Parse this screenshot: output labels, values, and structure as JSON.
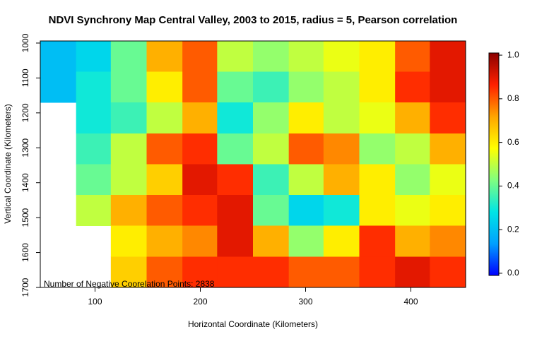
{
  "chart_data": {
    "type": "heatmap",
    "title": "NDVI Synchrony Map Central Valley, 2003 to 2015, radius = 5, Pearson correlation",
    "x_label": "Horizontal Coordinate (Kilometers)",
    "y_label": "Vertical Coordinate (Kilometers)",
    "annotation": "Number of Negative Coorelation Points: 2838",
    "xlim": [
      48,
      452
    ],
    "ylim": [
      994,
      1700
    ],
    "y_reversed": true,
    "xticks": [
      100,
      200,
      300,
      400
    ],
    "yticks": [
      1000,
      1100,
      1200,
      1300,
      1400,
      1500,
      1600,
      1700
    ],
    "x_edges": [
      48,
      82,
      115,
      149,
      183,
      216,
      250,
      284,
      317,
      351,
      385,
      418,
      452
    ],
    "y_edges": [
      994,
      1082,
      1170,
      1259,
      1347,
      1435,
      1523,
      1612,
      1700
    ],
    "z": [
      [
        0.2,
        0.25,
        0.4,
        0.7,
        0.8,
        0.5,
        0.45,
        0.5,
        0.55,
        0.6,
        0.8,
        0.9
      ],
      [
        0.2,
        0.3,
        0.4,
        0.6,
        0.8,
        0.4,
        0.35,
        0.45,
        0.5,
        0.6,
        0.85,
        0.9
      ],
      [
        null,
        0.3,
        0.35,
        0.5,
        0.7,
        0.3,
        0.45,
        0.6,
        0.5,
        0.55,
        0.7,
        0.85
      ],
      [
        null,
        0.35,
        0.5,
        0.8,
        0.85,
        0.4,
        0.5,
        0.8,
        0.75,
        0.45,
        0.5,
        0.7
      ],
      [
        null,
        0.4,
        0.5,
        0.65,
        0.9,
        0.85,
        0.35,
        0.5,
        0.7,
        0.6,
        0.45,
        0.55
      ],
      [
        null,
        0.5,
        0.7,
        0.8,
        0.85,
        0.9,
        0.4,
        0.25,
        0.3,
        0.6,
        0.55,
        0.6
      ],
      [
        null,
        null,
        0.6,
        0.7,
        0.75,
        0.9,
        0.7,
        0.45,
        0.6,
        0.85,
        0.7,
        0.75
      ],
      [
        null,
        null,
        0.65,
        0.8,
        0.85,
        0.85,
        0.85,
        0.8,
        0.8,
        0.85,
        0.9,
        0.85
      ]
    ],
    "zlim": [
      -0.01,
      1.01
    ],
    "zticks": [
      {
        "value": 0,
        "label": "0.0"
      },
      0.2,
      0.4,
      0.6,
      0.8,
      {
        "value": 1,
        "label": "1.0"
      }
    ],
    "colorscale": [
      "#0000ff",
      "#00a0ff",
      "#00e5e5",
      "#80ff80",
      "#ffff00",
      "#ffa500",
      "#ff2000",
      "#8b0000"
    ]
  }
}
